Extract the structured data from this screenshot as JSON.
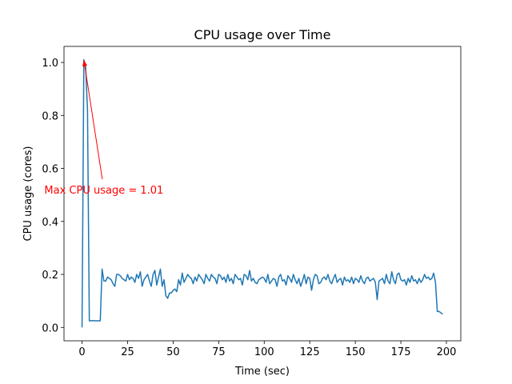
{
  "chart_data": {
    "type": "line",
    "title": "CPU usage over Time",
    "xlabel": "Time (sec)",
    "ylabel": "CPU usage (cores)",
    "x": [
      0,
      1,
      2,
      3,
      4,
      5,
      6,
      7,
      8,
      9,
      10,
      11,
      12,
      13,
      14,
      15,
      16,
      17,
      18,
      19,
      20,
      21,
      22,
      23,
      24,
      25,
      26,
      27,
      28,
      29,
      30,
      31,
      32,
      33,
      34,
      35,
      36,
      37,
      38,
      39,
      40,
      41,
      42,
      43,
      44,
      45,
      46,
      47,
      48,
      49,
      50,
      51,
      52,
      53,
      54,
      55,
      56,
      57,
      58,
      59,
      60,
      61,
      62,
      63,
      64,
      65,
      66,
      67,
      68,
      69,
      70,
      71,
      72,
      73,
      74,
      75,
      76,
      77,
      78,
      79,
      80,
      81,
      82,
      83,
      84,
      85,
      86,
      87,
      88,
      89,
      90,
      91,
      92,
      93,
      94,
      95,
      96,
      97,
      98,
      99,
      100,
      101,
      102,
      103,
      104,
      105,
      106,
      107,
      108,
      109,
      110,
      111,
      112,
      113,
      114,
      115,
      116,
      117,
      118,
      119,
      120,
      121,
      122,
      123,
      124,
      125,
      126,
      127,
      128,
      129,
      130,
      131,
      132,
      133,
      134,
      135,
      136,
      137,
      138,
      139,
      140,
      141,
      142,
      143,
      144,
      145,
      146,
      147,
      148,
      149,
      150,
      151,
      152,
      153,
      154,
      155,
      156,
      157,
      158,
      159,
      160,
      161,
      162,
      163,
      164,
      165,
      166,
      167,
      168,
      169,
      170,
      171,
      172,
      173,
      174,
      175,
      176,
      177,
      178,
      179,
      180,
      181,
      182,
      183,
      184,
      185,
      186,
      187,
      188,
      189,
      190,
      191,
      192,
      193,
      194,
      195,
      196,
      197,
      198
    ],
    "values": [
      0,
      1.01,
      0.98,
      0.82,
      0.025,
      0.025,
      0.026,
      0.025,
      0.025,
      0.025,
      0.025,
      0.22,
      0.175,
      0.175,
      0.19,
      0.185,
      0.18,
      0.165,
      0.155,
      0.2,
      0.2,
      0.195,
      0.185,
      0.18,
      0.175,
      0.2,
      0.18,
      0.19,
      0.185,
      0.17,
      0.2,
      0.185,
      0.21,
      0.155,
      0.18,
      0.19,
      0.2,
      0.175,
      0.155,
      0.2,
      0.215,
      0.16,
      0.19,
      0.22,
      0.155,
      0.18,
      0.12,
      0.11,
      0.13,
      0.13,
      0.14,
      0.145,
      0.135,
      0.18,
      0.16,
      0.205,
      0.17,
      0.185,
      0.2,
      0.19,
      0.185,
      0.165,
      0.19,
      0.175,
      0.2,
      0.19,
      0.18,
      0.165,
      0.2,
      0.185,
      0.175,
      0.2,
      0.19,
      0.185,
      0.165,
      0.2,
      0.195,
      0.18,
      0.19,
      0.17,
      0.2,
      0.175,
      0.185,
      0.165,
      0.2,
      0.19,
      0.18,
      0.185,
      0.16,
      0.2,
      0.195,
      0.18,
      0.215,
      0.175,
      0.185,
      0.17,
      0.165,
      0.18,
      0.185,
      0.19,
      0.185,
      0.17,
      0.2,
      0.165,
      0.175,
      0.185,
      0.18,
      0.155,
      0.19,
      0.2,
      0.175,
      0.18,
      0.16,
      0.195,
      0.185,
      0.17,
      0.2,
      0.18,
      0.165,
      0.185,
      0.155,
      0.175,
      0.2,
      0.165,
      0.19,
      0.185,
      0.14,
      0.18,
      0.2,
      0.195,
      0.165,
      0.17,
      0.185,
      0.19,
      0.18,
      0.2,
      0.175,
      0.165,
      0.185,
      0.2,
      0.17,
      0.18,
      0.185,
      0.16,
      0.19,
      0.175,
      0.18,
      0.17,
      0.19,
      0.165,
      0.185,
      0.18,
      0.17,
      0.195,
      0.175,
      0.165,
      0.185,
      0.19,
      0.175,
      0.18,
      0.185,
      0.17,
      0.105,
      0.175,
      0.18,
      0.185,
      0.165,
      0.2,
      0.175,
      0.165,
      0.21,
      0.18,
      0.165,
      0.2,
      0.205,
      0.18,
      0.175,
      0.18,
      0.16,
      0.185,
      0.17,
      0.195,
      0.175,
      0.18,
      0.165,
      0.185,
      0.17,
      0.18,
      0.2,
      0.185,
      0.19,
      0.18,
      0.185,
      0.205,
      0.17,
      0.06,
      0.06,
      0.055,
      0.05
    ],
    "color": "#1f77b4",
    "xlim": [
      -9.9,
      207.9
    ],
    "xticks": [
      0,
      25,
      50,
      75,
      100,
      125,
      150,
      175,
      200
    ],
    "ylim": [
      -0.0505,
      1.0605
    ],
    "yticks": [
      {
        "value": 0,
        "label": "0.0"
      },
      {
        "value": 0.2,
        "label": "0.2"
      },
      {
        "value": 0.4,
        "label": "0.4"
      },
      {
        "value": 0.6,
        "label": "0.6"
      },
      {
        "value": 0.8,
        "label": "0.8"
      },
      {
        "value": 1,
        "label": "1.0"
      }
    ],
    "annotation": {
      "text": "Max CPU usage = 1.01",
      "xy": [
        1,
        1.01
      ],
      "xytext": [
        12,
        0.52
      ],
      "color": "red"
    }
  }
}
